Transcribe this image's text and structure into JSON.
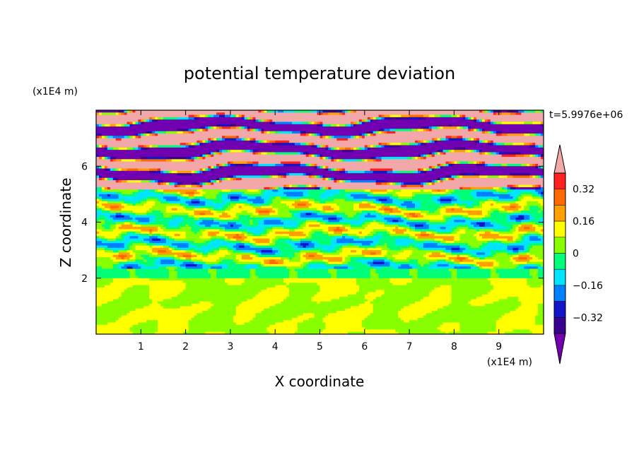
{
  "chart_data": {
    "type": "heatmap",
    "title": "potential temperature deviation",
    "xlabel": "X coordinate",
    "ylabel": "Z coordinate",
    "x_unit": "(x1E4 m)",
    "y_unit": "(x1E4 m)",
    "time_label": "t=5.9976e+06",
    "xlim": [
      0,
      10
    ],
    "ylim": [
      0,
      8
    ],
    "x_ticks": [
      1,
      2,
      3,
      4,
      5,
      6,
      7,
      8,
      9
    ],
    "y_ticks": [
      2,
      4,
      6
    ],
    "colorbar": {
      "levels": [
        -0.4,
        -0.32,
        -0.24,
        -0.16,
        -0.08,
        0,
        0.08,
        0.16,
        0.24,
        0.32,
        0.4
      ],
      "labels": [
        "0.32",
        "0.16",
        "0",
        "−0.16",
        "−0.32"
      ],
      "label_values": [
        0.32,
        0.16,
        0,
        -0.16,
        -0.32
      ],
      "colors": [
        "#f2a8a8",
        "#ff2020",
        "#ff6a00",
        "#ff9f00",
        "#ffff00",
        "#88ff00",
        "#00ff78",
        "#00e5ff",
        "#0080ff",
        "#1414c8",
        "#3a0090",
        "#7000b0"
      ],
      "extend": "both"
    },
    "regions": {
      "lower": "green turbulent layer (values near 0 to +0.08)",
      "middle": "mixed band of all colors",
      "upper": "alternating pink (>0.4) and purple (<-0.4) stripes"
    }
  }
}
